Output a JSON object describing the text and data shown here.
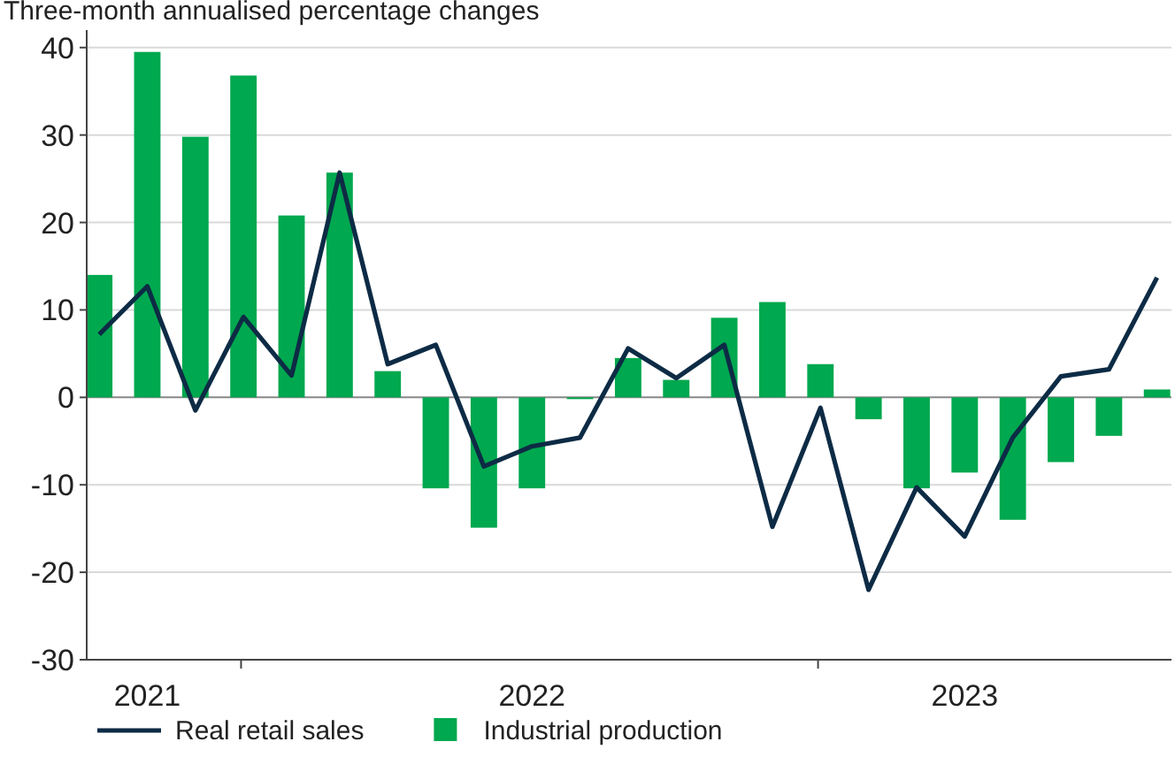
{
  "chart_data": {
    "type": "bar",
    "subtitle": "Three-month annualised percentage changes",
    "categories": [
      null,
      "2021",
      null,
      null,
      null,
      null,
      null,
      null,
      null,
      "2022",
      null,
      null,
      null,
      null,
      null,
      null,
      null,
      null,
      "2023",
      null,
      null,
      null,
      null
    ],
    "ylim": [
      -30,
      42
    ],
    "yticks": [
      -30,
      -20,
      -10,
      0,
      10,
      20,
      30,
      40
    ],
    "grid": "y",
    "legend": "bottom",
    "series": [
      {
        "name": "Real retail sales",
        "type": "line",
        "color": "#0d2b45",
        "values": [
          7.2,
          12.7,
          -1.5,
          9.2,
          2.5,
          25.7,
          3.8,
          6.0,
          -7.9,
          -5.6,
          -4.6,
          5.6,
          2.2,
          6.0,
          -14.8,
          -1.2,
          -22.0,
          -10.3,
          -15.9,
          -4.6,
          2.4,
          3.2,
          13.7
        ]
      },
      {
        "name": "Industrial production",
        "color": "#00a84f",
        "values": [
          14.0,
          39.5,
          29.8,
          36.8,
          20.8,
          25.7,
          3.0,
          -10.4,
          -14.9,
          -10.4,
          -0.2,
          4.5,
          2.0,
          9.1,
          10.9,
          3.8,
          -2.5,
          -10.4,
          -8.6,
          -14.0,
          -7.4,
          -4.4,
          0.9
        ]
      }
    ]
  }
}
